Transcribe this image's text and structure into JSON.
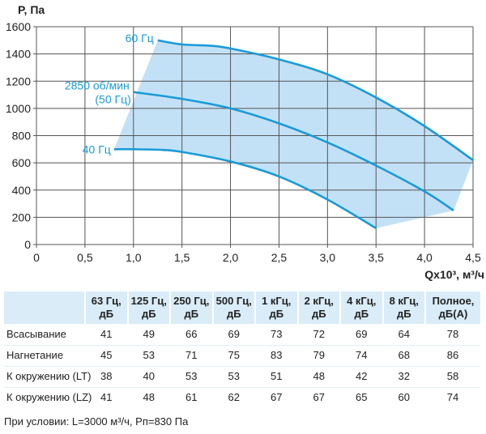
{
  "chart_data": {
    "type": "line",
    "ylabel": "P, Па",
    "xlabel": "Qx10³, м³/ч",
    "xlim": [
      0,
      4.5
    ],
    "ylim": [
      0,
      1600
    ],
    "xticks": [
      "0",
      "0,5",
      "1,0",
      "1,5",
      "2,0",
      "2,5",
      "3,0",
      "3,5",
      "4,0",
      "4,5"
    ],
    "yticks": [
      "0",
      "200",
      "400",
      "600",
      "800",
      "1000",
      "1200",
      "1400",
      "1600"
    ],
    "grid": true,
    "series": [
      {
        "name": "60 Гц",
        "points": [
          [
            1.25,
            1500
          ],
          [
            1.5,
            1470
          ],
          [
            1.8,
            1460
          ],
          [
            2.0,
            1440
          ],
          [
            2.5,
            1360
          ],
          [
            3.0,
            1250
          ],
          [
            3.5,
            1080
          ],
          [
            4.0,
            870
          ],
          [
            4.5,
            620
          ]
        ]
      },
      {
        "name": "2850 об/мин",
        "name2": "(50 Гц)",
        "points": [
          [
            1.0,
            1120
          ],
          [
            1.5,
            1070
          ],
          [
            2.0,
            1000
          ],
          [
            2.5,
            890
          ],
          [
            3.0,
            750
          ],
          [
            3.5,
            580
          ],
          [
            4.0,
            390
          ],
          [
            4.3,
            250
          ]
        ]
      },
      {
        "name": "40 Гц",
        "points": [
          [
            0.8,
            700
          ],
          [
            1.0,
            700
          ],
          [
            1.3,
            695
          ],
          [
            1.5,
            680
          ],
          [
            2.0,
            610
          ],
          [
            2.5,
            500
          ],
          [
            3.0,
            330
          ],
          [
            3.5,
            120
          ]
        ]
      }
    ],
    "area_extra_points": [
      [
        4.3,
        250
      ],
      [
        3.5,
        120
      ]
    ],
    "colors": {
      "line": "#1a9ad6",
      "area": "#b8dcf4",
      "label": "#1a9ad6",
      "grid": "#555555"
    }
  },
  "table": {
    "headers": [
      "",
      "63 Гц,|дБ",
      "125 Гц,|дБ",
      "250 Гц,|дБ",
      "500 Гц,|дБ",
      "1 кГц,|дБ",
      "2 кГц,|дБ",
      "4 кГц,|дБ",
      "8 кГц,|дБ",
      "Полное,|дБ(А)"
    ],
    "rows": [
      [
        "Всасывание",
        "41",
        "49",
        "66",
        "69",
        "73",
        "72",
        "69",
        "64",
        "78"
      ],
      [
        "Нагнетание",
        "45",
        "53",
        "71",
        "75",
        "83",
        "79",
        "74",
        "68",
        "86"
      ],
      [
        "К окружению (LT)",
        "38",
        "40",
        "53",
        "53",
        "51",
        "48",
        "42",
        "32",
        "58"
      ],
      [
        "К окружению (LZ)",
        "41",
        "48",
        "61",
        "62",
        "67",
        "67",
        "65",
        "60",
        "74"
      ]
    ]
  },
  "note": "При условии: L=3000 м³/ч, Рп=830 Па"
}
